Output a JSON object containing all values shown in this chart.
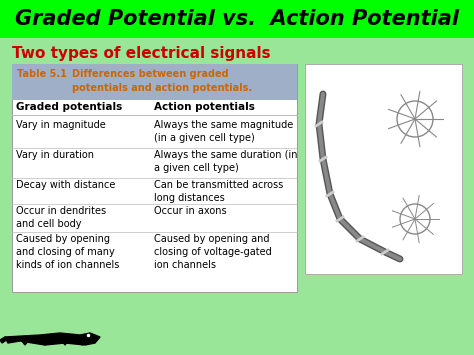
{
  "title": "Graded Potential vs.  Action Potential",
  "title_bg": "#00ff00",
  "title_color": "black",
  "subtitle": "Two types of electrical signals",
  "subtitle_color": "#cc0000",
  "bg_color": "#99e699",
  "table_header_bg": "#a0afc8",
  "table_header_color": "#cc6600",
  "table_header_label": "Table 5.1",
  "table_header_desc": "Differences between graded\npotentials and action potentials.",
  "col1_header": "Graded potentials",
  "col2_header": "Action potentials",
  "rows": [
    [
      "Vary in magnitude",
      "Always the same magnitude\n(in a given cell type)"
    ],
    [
      "Vary in duration",
      "Always the same duration (in\na given cell type)"
    ],
    [
      "Decay with distance",
      "Can be transmitted across\nlong distances"
    ],
    [
      "Occur in dendrites\nand cell body",
      "Occur in axons"
    ],
    [
      "Caused by opening\nand closing of many\nkinds of ion channels",
      "Caused by opening and\nclosing of voltage-gated\nion channels"
    ]
  ],
  "table_bg": "white",
  "row_line_color": "#bbbbbb",
  "font_size_title": 15,
  "font_size_subtitle": 11,
  "font_size_table_header": 7,
  "font_size_col_header": 7.5,
  "font_size_table": 7
}
